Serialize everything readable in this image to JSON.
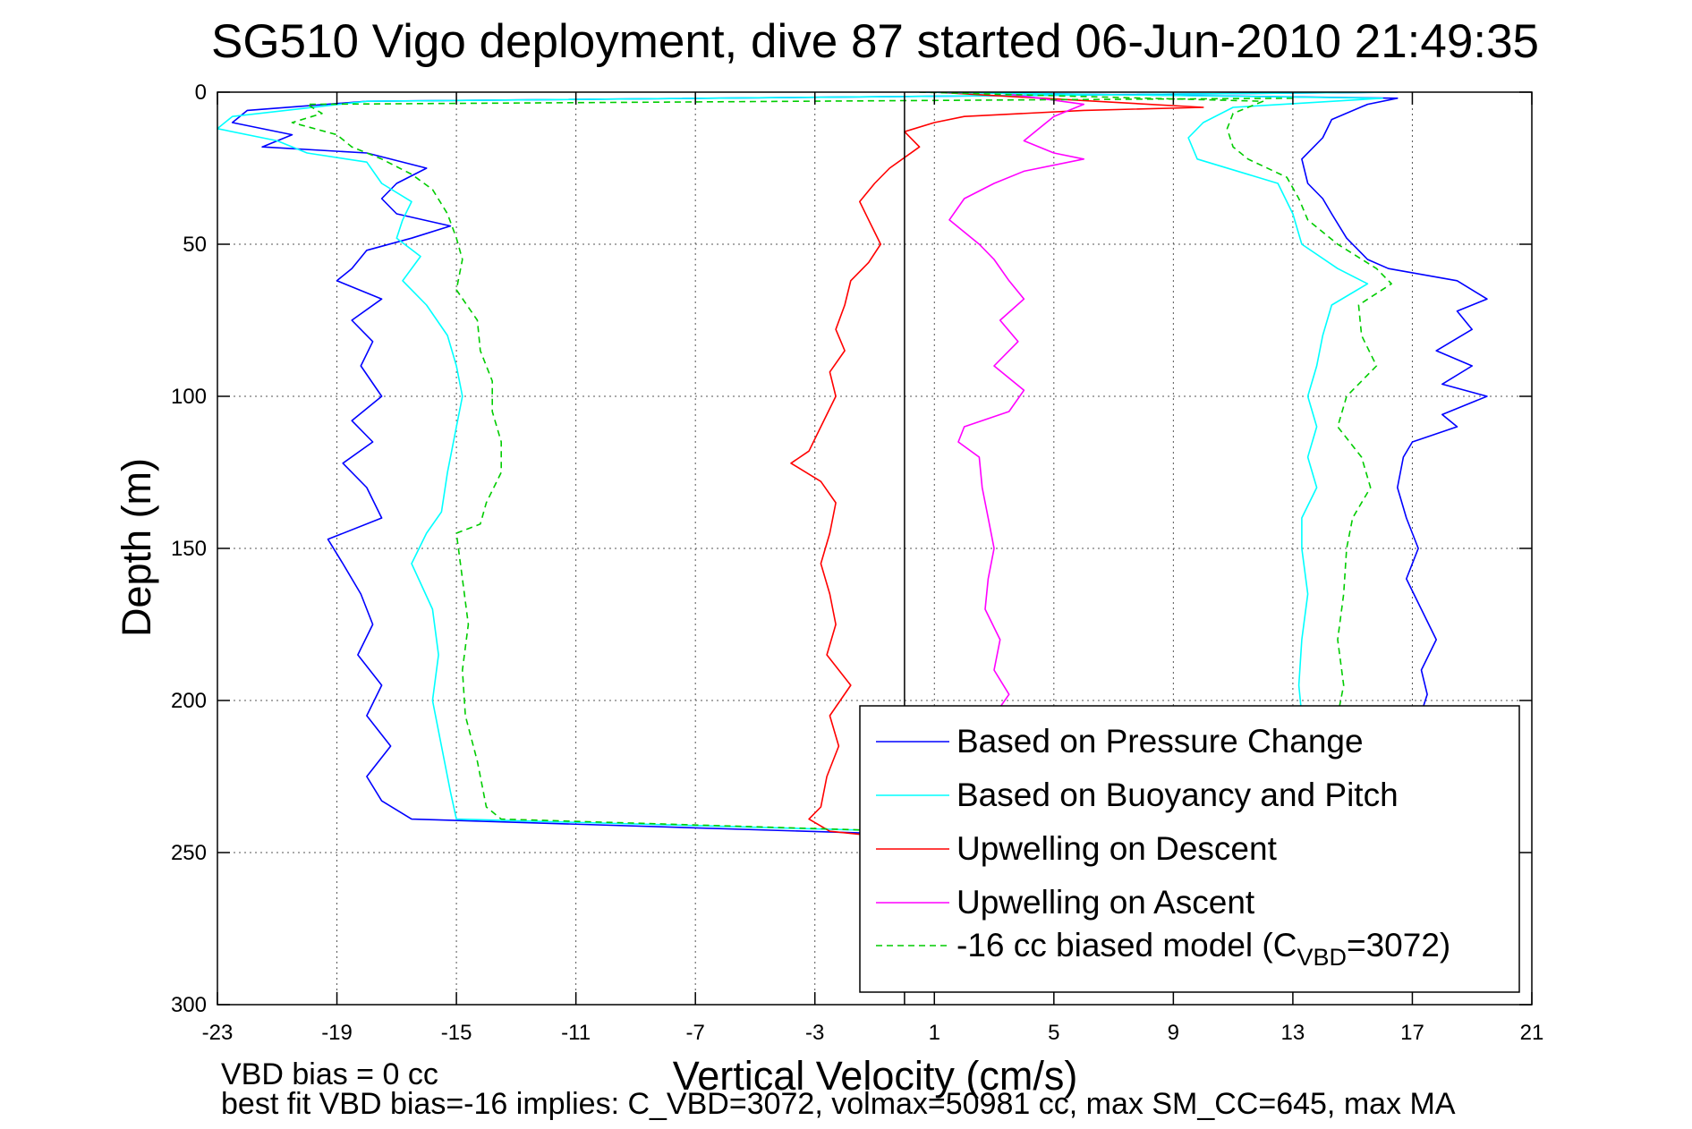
{
  "chart_data": {
    "type": "line",
    "title": "SG510 Vigo deployment, dive 87 started 06-Jun-2010 21:49:35",
    "xlabel": "Vertical Velocity (cm/s)",
    "ylabel": "Depth (m)",
    "xlim": [
      -23,
      21
    ],
    "ylim": [
      0,
      300
    ],
    "y_reversed": true,
    "grid": true,
    "x_ticks": [
      "-23",
      "-19",
      "-15",
      "-11",
      "-7",
      "-3",
      "1",
      "5",
      "9",
      "13",
      "17",
      "21"
    ],
    "y_ticks": [
      "0",
      "50",
      "100",
      "150",
      "200",
      "250",
      "300"
    ],
    "legend_position": "bottom-right",
    "vertical_reference_x": 0,
    "series": [
      {
        "name": "Based on Pressure Change",
        "color": "#0000ff",
        "style": "solid",
        "points": [
          [
            16.5,
            0
          ],
          [
            -18,
            3
          ],
          [
            -22,
            6
          ],
          [
            -22.5,
            10
          ],
          [
            -20.5,
            14
          ],
          [
            -21.5,
            18
          ],
          [
            -18,
            20
          ],
          [
            -16,
            25
          ],
          [
            -17,
            30
          ],
          [
            -17.5,
            35
          ],
          [
            -17,
            40
          ],
          [
            -15.2,
            44
          ],
          [
            -16.5,
            48
          ],
          [
            -18,
            52
          ],
          [
            -18.5,
            58
          ],
          [
            -19,
            62
          ],
          [
            -17.5,
            68
          ],
          [
            -18.5,
            75
          ],
          [
            -17.8,
            82
          ],
          [
            -18.2,
            90
          ],
          [
            -17.5,
            100
          ],
          [
            -18.5,
            108
          ],
          [
            -17.8,
            115
          ],
          [
            -18.8,
            122
          ],
          [
            -18,
            130
          ],
          [
            -17.5,
            140
          ],
          [
            -19.3,
            147
          ],
          [
            -18.8,
            155
          ],
          [
            -18.2,
            165
          ],
          [
            -17.8,
            175
          ],
          [
            -18.3,
            185
          ],
          [
            -17.5,
            195
          ],
          [
            -18,
            205
          ],
          [
            -17.2,
            215
          ],
          [
            -18,
            225
          ],
          [
            -17.5,
            233
          ],
          [
            -16.5,
            239
          ],
          [
            0,
            244
          ],
          [
            0.5,
            246
          ]
        ]
      },
      {
        "name": "Based on Buoyancy and Pitch",
        "color": "#00ffff",
        "style": "solid",
        "points": [
          [
            16.5,
            0
          ],
          [
            -18,
            3
          ],
          [
            -22.5,
            8
          ],
          [
            -23,
            12
          ],
          [
            -21,
            16
          ],
          [
            -20,
            20
          ],
          [
            -18,
            23
          ],
          [
            -17.5,
            30
          ],
          [
            -16.5,
            36
          ],
          [
            -16.8,
            42
          ],
          [
            -17,
            48
          ],
          [
            -16.2,
            54
          ],
          [
            -16.8,
            62
          ],
          [
            -16,
            70
          ],
          [
            -15.3,
            80
          ],
          [
            -15,
            90
          ],
          [
            -14.8,
            100
          ],
          [
            -15,
            110
          ],
          [
            -15.3,
            125
          ],
          [
            -15.5,
            138
          ],
          [
            -16,
            145
          ],
          [
            -16.5,
            155
          ],
          [
            -15.8,
            170
          ],
          [
            -15.6,
            185
          ],
          [
            -15.8,
            200
          ],
          [
            -15.5,
            215
          ],
          [
            -15.2,
            230
          ],
          [
            -15,
            239
          ],
          [
            0,
            243
          ],
          [
            0.5,
            245
          ]
        ]
      },
      {
        "name": "Upwelling on Descent",
        "color": "#ff0000",
        "style": "solid",
        "points": [
          [
            1,
            0
          ],
          [
            10,
            5
          ],
          [
            6,
            6
          ],
          [
            2,
            8
          ],
          [
            1,
            10
          ],
          [
            0,
            13
          ],
          [
            0.5,
            18
          ],
          [
            -0.5,
            25
          ],
          [
            -1,
            30
          ],
          [
            -1.5,
            36
          ],
          [
            -1.2,
            42
          ],
          [
            -0.8,
            50
          ],
          [
            -1.2,
            56
          ],
          [
            -1.8,
            62
          ],
          [
            -2,
            70
          ],
          [
            -2.3,
            78
          ],
          [
            -2,
            85
          ],
          [
            -2.5,
            92
          ],
          [
            -2.3,
            100
          ],
          [
            -2.8,
            110
          ],
          [
            -3.2,
            118
          ],
          [
            -3.8,
            122
          ],
          [
            -2.8,
            128
          ],
          [
            -2.3,
            135
          ],
          [
            -2.5,
            145
          ],
          [
            -2.8,
            155
          ],
          [
            -2.5,
            165
          ],
          [
            -2.3,
            175
          ],
          [
            -2.6,
            185
          ],
          [
            -1.8,
            195
          ],
          [
            -2.5,
            205
          ],
          [
            -2.2,
            215
          ],
          [
            -2.6,
            225
          ],
          [
            -2.8,
            235
          ],
          [
            -3.2,
            239
          ],
          [
            -2.5,
            243
          ],
          [
            0.5,
            246
          ]
        ]
      },
      {
        "name": "Upwelling on Ascent",
        "color": "#ff00ff",
        "style": "solid",
        "points": [
          [
            3,
            0
          ],
          [
            6,
            4
          ],
          [
            5,
            8
          ],
          [
            4.5,
            12
          ],
          [
            4,
            16
          ],
          [
            5,
            20
          ],
          [
            6,
            22
          ],
          [
            4,
            26
          ],
          [
            3,
            30
          ],
          [
            2,
            35
          ],
          [
            1.5,
            42
          ],
          [
            2.5,
            50
          ],
          [
            3,
            55
          ],
          [
            3.5,
            62
          ],
          [
            4,
            68
          ],
          [
            3.2,
            75
          ],
          [
            3.8,
            82
          ],
          [
            3,
            90
          ],
          [
            4,
            98
          ],
          [
            3.5,
            105
          ],
          [
            2,
            110
          ],
          [
            1.8,
            115
          ],
          [
            2.5,
            120
          ],
          [
            2.6,
            130
          ],
          [
            2.8,
            140
          ],
          [
            3,
            150
          ],
          [
            2.8,
            160
          ],
          [
            2.7,
            170
          ],
          [
            3.2,
            180
          ],
          [
            3,
            190
          ],
          [
            3.5,
            198
          ],
          [
            3,
            205
          ]
        ]
      },
      {
        "name": "-16 cc biased model (CVBD=3072)",
        "color": "#00cc00",
        "style": "dashed",
        "points": [
          [
            13,
            2
          ],
          [
            -20,
            4
          ],
          [
            -19.5,
            7
          ],
          [
            -20.5,
            10
          ],
          [
            -19,
            14
          ],
          [
            -18.5,
            18
          ],
          [
            -17.5,
            22
          ],
          [
            -16.5,
            27
          ],
          [
            -15.8,
            32
          ],
          [
            -15.3,
            40
          ],
          [
            -15,
            48
          ],
          [
            -14.8,
            55
          ],
          [
            -15,
            65
          ],
          [
            -14.3,
            75
          ],
          [
            -14.2,
            85
          ],
          [
            -13.8,
            95
          ],
          [
            -13.8,
            105
          ],
          [
            -13.5,
            115
          ],
          [
            -13.5,
            125
          ],
          [
            -14,
            135
          ],
          [
            -14.2,
            142
          ],
          [
            -15,
            145
          ],
          [
            -14.8,
            160
          ],
          [
            -14.6,
            175
          ],
          [
            -14.8,
            190
          ],
          [
            -14.7,
            205
          ],
          [
            -14.3,
            220
          ],
          [
            -14,
            235
          ],
          [
            -13.5,
            239
          ],
          [
            0,
            243
          ],
          [
            0.5,
            245
          ]
        ]
      },
      {
        "name": "",
        "color": "#0000ff",
        "style": "solid",
        "points": [
          [
            0.5,
            0
          ],
          [
            16.5,
            2
          ],
          [
            15.5,
            4
          ],
          [
            14.3,
            9
          ],
          [
            14,
            15
          ],
          [
            13.3,
            22
          ],
          [
            13.5,
            30
          ],
          [
            14,
            35
          ],
          [
            14.3,
            40
          ],
          [
            14.8,
            48
          ],
          [
            15.5,
            55
          ],
          [
            16.2,
            58
          ],
          [
            18.5,
            62
          ],
          [
            19.5,
            68
          ],
          [
            18.5,
            72
          ],
          [
            19,
            78
          ],
          [
            17.8,
            85
          ],
          [
            19,
            90
          ],
          [
            18,
            96
          ],
          [
            19.5,
            100
          ],
          [
            18,
            106
          ],
          [
            18.5,
            110
          ],
          [
            17,
            115
          ],
          [
            16.7,
            120
          ],
          [
            16.5,
            130
          ],
          [
            16.8,
            140
          ],
          [
            17.2,
            150
          ],
          [
            16.8,
            160
          ],
          [
            17.3,
            170
          ],
          [
            17.8,
            180
          ],
          [
            17.3,
            190
          ],
          [
            17.5,
            198
          ],
          [
            17.3,
            204
          ]
        ]
      },
      {
        "name": "",
        "color": "#00ffff",
        "style": "solid",
        "points": [
          [
            0.5,
            0
          ],
          [
            16,
            2
          ],
          [
            11,
            5
          ],
          [
            10,
            10
          ],
          [
            9.5,
            15
          ],
          [
            9.8,
            22
          ],
          [
            12.5,
            30
          ],
          [
            13,
            40
          ],
          [
            13.3,
            50
          ],
          [
            14.5,
            58
          ],
          [
            15.5,
            63
          ],
          [
            14.3,
            70
          ],
          [
            14,
            80
          ],
          [
            13.8,
            90
          ],
          [
            13.5,
            100
          ],
          [
            13.8,
            110
          ],
          [
            13.5,
            120
          ],
          [
            13.8,
            130
          ],
          [
            13.3,
            140
          ],
          [
            13.3,
            150
          ],
          [
            13.5,
            165
          ],
          [
            13.3,
            180
          ],
          [
            13.2,
            195
          ],
          [
            13.3,
            205
          ]
        ]
      },
      {
        "name": "",
        "color": "#00cc00",
        "style": "dashed",
        "points": [
          [
            0.5,
            0
          ],
          [
            12,
            3
          ],
          [
            11,
            7
          ],
          [
            10.8,
            12
          ],
          [
            11,
            18
          ],
          [
            11.5,
            22
          ],
          [
            12.8,
            28
          ],
          [
            13.2,
            35
          ],
          [
            13.5,
            42
          ],
          [
            14.5,
            50
          ],
          [
            15.8,
            58
          ],
          [
            16.3,
            63
          ],
          [
            15.2,
            70
          ],
          [
            15.3,
            80
          ],
          [
            15.8,
            90
          ],
          [
            14.8,
            100
          ],
          [
            14.5,
            110
          ],
          [
            15.3,
            120
          ],
          [
            15.6,
            130
          ],
          [
            15,
            140
          ],
          [
            14.8,
            150
          ],
          [
            14.7,
            165
          ],
          [
            14.5,
            180
          ],
          [
            14.7,
            195
          ],
          [
            14.5,
            205
          ]
        ]
      }
    ],
    "legend": [
      {
        "label": "Based on Pressure Change",
        "color": "#0000ff",
        "style": "solid"
      },
      {
        "label": "Based on Buoyancy and Pitch",
        "color": "#00ffff",
        "style": "solid"
      },
      {
        "label": "Upwelling on Descent",
        "color": "#ff0000",
        "style": "solid"
      },
      {
        "label": "Upwelling on Ascent",
        "color": "#ff00ff",
        "style": "solid"
      },
      {
        "label": "-16 cc biased model (C",
        "sub": "VBD",
        "suffix": "=3072)",
        "color": "#00cc00",
        "style": "dashed"
      }
    ],
    "footer": {
      "line1": "VBD bias = 0 cc",
      "line2": "best fit VBD bias=-16 implies: C_VBD=3072, volmax=50981 cc, max SM_CC=645, max MA"
    }
  }
}
